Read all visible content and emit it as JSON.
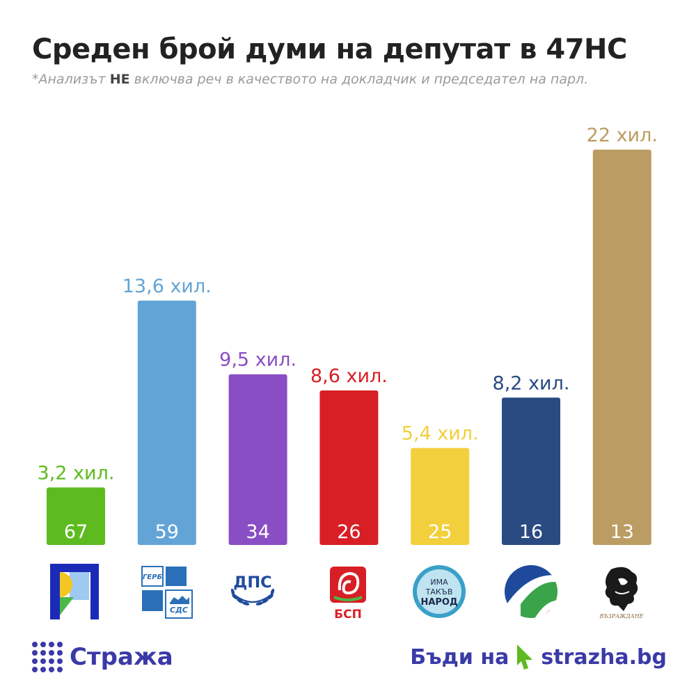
{
  "header": {
    "title": "Среден брой думи на депутат в 47НС",
    "subtitle_prefix": "*Анализът ",
    "subtitle_emph": "НЕ",
    "subtitle_suffix": " включва реч в качеството на докладчик и председател на парл."
  },
  "chart_data": {
    "type": "bar",
    "title": "Среден брой думи на депутат в 47НС",
    "categories": [
      "ПП",
      "ГЕРБ-СДС",
      "ДПС",
      "БСП",
      "ИТН",
      "ДБ",
      "Възраждане"
    ],
    "values": [
      3200,
      13600,
      9500,
      8600,
      5400,
      8200,
      22000
    ],
    "value_labels": [
      "3,2 хил.",
      "13,6 хил.",
      "9,5 хил.",
      "8,6 хил.",
      "5,4 хил.",
      "8,2 хил.",
      "22 хил."
    ],
    "inner_labels": [
      "67",
      "59",
      "34",
      "26",
      "25",
      "16",
      "13"
    ],
    "colors": [
      "#5dbb1f",
      "#63a4d6",
      "#8a4ec4",
      "#d71f25",
      "#f2cf3c",
      "#2a4a82",
      "#bb9c62"
    ],
    "ylim": [
      0,
      22000
    ],
    "grid": false,
    "legend": "none"
  },
  "logos": [
    {
      "icon": "pp-logo-icon"
    },
    {
      "icon": "gerb-sds-logo-icon",
      "text_top": "ГЕРБ",
      "text_bottom": "СДС"
    },
    {
      "icon": "dps-logo-icon",
      "text": "ДПС"
    },
    {
      "icon": "bsp-logo-icon",
      "text": "БСП"
    },
    {
      "icon": "itn-logo-icon",
      "line1": "ИМА",
      "line2": "ТАКЪВ",
      "line3": "НАРОД"
    },
    {
      "icon": "db-logo-icon"
    },
    {
      "icon": "vazrazhdane-logo-icon",
      "text": "ВЪЗРАЖДАНЕ"
    }
  ],
  "footer": {
    "brand": "Стража",
    "cta": "Бъди на",
    "site_name": "strazha",
    "site_tld": ".bg",
    "brand_color": "#3a3aa8",
    "cursor_color": "#5dbb1f"
  }
}
